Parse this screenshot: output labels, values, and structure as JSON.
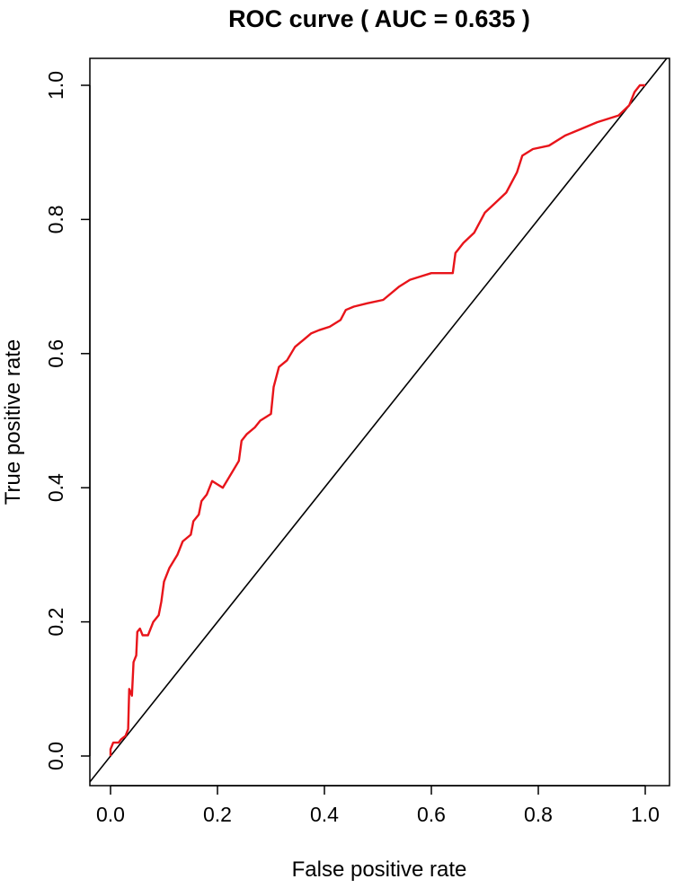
{
  "chart_data": {
    "type": "line",
    "title": "ROC curve ( AUC =  0.635 )",
    "xlabel": "False positive rate",
    "ylabel": "True positive rate",
    "xlim": [
      0,
      1
    ],
    "ylim": [
      0,
      1
    ],
    "x_ticks": [
      "0.0",
      "0.2",
      "0.4",
      "0.6",
      "0.8",
      "1.0"
    ],
    "y_ticks": [
      "0.0",
      "0.2",
      "0.4",
      "0.6",
      "0.8",
      "1.0"
    ],
    "grid": false,
    "colors": {
      "roc": "#e8141a",
      "diagonal": "#000000"
    },
    "series": [
      {
        "values": [
          [
            0.0,
            0.0
          ],
          [
            0.0,
            0.01
          ],
          [
            0.005,
            0.02
          ],
          [
            0.015,
            0.02
          ],
          [
            0.02,
            0.025
          ],
          [
            0.028,
            0.03
          ],
          [
            0.033,
            0.04
          ],
          [
            0.035,
            0.1
          ],
          [
            0.04,
            0.09
          ],
          [
            0.043,
            0.14
          ],
          [
            0.048,
            0.15
          ],
          [
            0.05,
            0.185
          ],
          [
            0.055,
            0.19
          ],
          [
            0.06,
            0.18
          ],
          [
            0.07,
            0.18
          ],
          [
            0.08,
            0.2
          ],
          [
            0.09,
            0.21
          ],
          [
            0.095,
            0.23
          ],
          [
            0.1,
            0.26
          ],
          [
            0.11,
            0.28
          ],
          [
            0.125,
            0.3
          ],
          [
            0.135,
            0.32
          ],
          [
            0.15,
            0.33
          ],
          [
            0.155,
            0.35
          ],
          [
            0.165,
            0.36
          ],
          [
            0.17,
            0.38
          ],
          [
            0.18,
            0.39
          ],
          [
            0.19,
            0.41
          ],
          [
            0.2,
            0.405
          ],
          [
            0.21,
            0.4
          ],
          [
            0.225,
            0.42
          ],
          [
            0.24,
            0.44
          ],
          [
            0.245,
            0.47
          ],
          [
            0.255,
            0.48
          ],
          [
            0.27,
            0.49
          ],
          [
            0.28,
            0.5
          ],
          [
            0.3,
            0.51
          ],
          [
            0.305,
            0.55
          ],
          [
            0.315,
            0.58
          ],
          [
            0.33,
            0.59
          ],
          [
            0.345,
            0.61
          ],
          [
            0.36,
            0.62
          ],
          [
            0.375,
            0.63
          ],
          [
            0.39,
            0.635
          ],
          [
            0.41,
            0.64
          ],
          [
            0.43,
            0.65
          ],
          [
            0.44,
            0.665
          ],
          [
            0.455,
            0.67
          ],
          [
            0.48,
            0.675
          ],
          [
            0.51,
            0.68
          ],
          [
            0.54,
            0.7
          ],
          [
            0.56,
            0.71
          ],
          [
            0.58,
            0.715
          ],
          [
            0.6,
            0.72
          ],
          [
            0.64,
            0.72
          ],
          [
            0.645,
            0.75
          ],
          [
            0.66,
            0.765
          ],
          [
            0.68,
            0.78
          ],
          [
            0.7,
            0.81
          ],
          [
            0.72,
            0.825
          ],
          [
            0.74,
            0.84
          ],
          [
            0.76,
            0.87
          ],
          [
            0.77,
            0.895
          ],
          [
            0.79,
            0.905
          ],
          [
            0.82,
            0.91
          ],
          [
            0.85,
            0.925
          ],
          [
            0.88,
            0.935
          ],
          [
            0.91,
            0.945
          ],
          [
            0.93,
            0.95
          ],
          [
            0.95,
            0.955
          ],
          [
            0.97,
            0.97
          ],
          [
            0.98,
            0.99
          ],
          [
            0.99,
            1.0
          ],
          [
            1.0,
            1.0
          ]
        ]
      },
      {
        "values": [
          [
            -0.05,
            -0.05
          ],
          [
            1.05,
            1.05
          ]
        ]
      }
    ]
  }
}
